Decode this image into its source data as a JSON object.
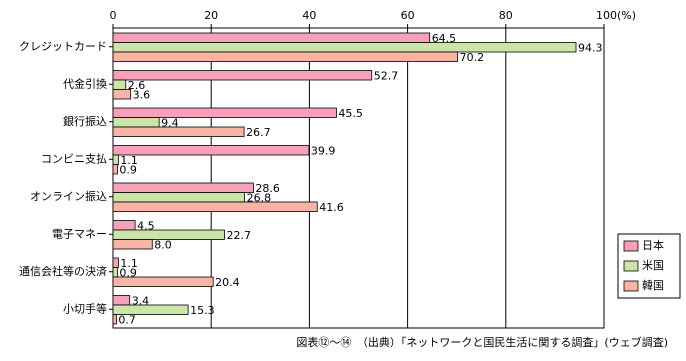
{
  "chart_data": {
    "type": "bar",
    "orientation": "horizontal",
    "categories": [
      "クレジットカード",
      "代金引換",
      "銀行振込",
      "コンビニ支払",
      "オンライン振込",
      "電子マネー",
      "通信会社等の決済",
      "小切手等"
    ],
    "series": [
      {
        "name": "日本",
        "color": "#f8a0b8",
        "values": [
          64.5,
          52.7,
          45.5,
          39.9,
          28.6,
          4.5,
          1.1,
          3.4
        ]
      },
      {
        "name": "米国",
        "color": "#cce4a8",
        "values": [
          94.3,
          2.6,
          9.4,
          1.1,
          26.8,
          22.7,
          0.9,
          15.3
        ]
      },
      {
        "name": "韓国",
        "color": "#f8b4a4",
        "values": [
          70.2,
          3.6,
          26.7,
          0.9,
          41.6,
          8.0,
          20.4,
          0.7
        ],
        "value_labels": [
          "70.2",
          "3.6",
          "26.7",
          "0.9",
          "41.6",
          "8.0",
          "20.4",
          "0.7"
        ]
      }
    ],
    "xlim": [
      0,
      100
    ],
    "xticks": [
      0,
      20,
      40,
      60,
      80,
      {
        "value": 100,
        "label": "100(%)"
      }
    ],
    "grid": true,
    "legend": "lower right",
    "source": "図表⑫～⑭　（出典）「ネットワークと国民生活に関する調査」(ウェブ調査)"
  }
}
